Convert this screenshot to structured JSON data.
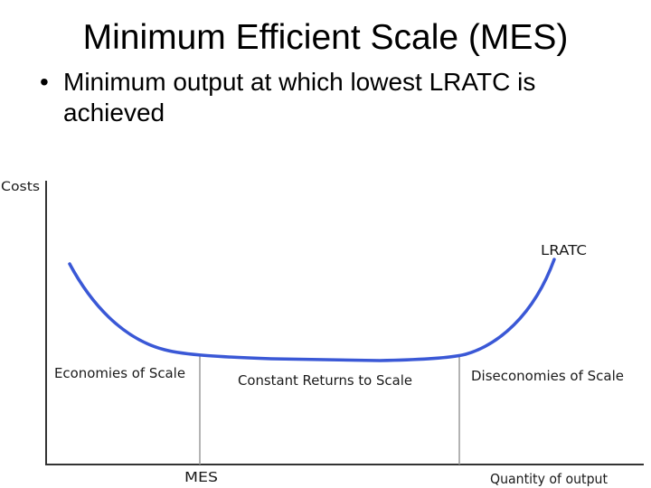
{
  "title": "Minimum Efficient Scale (MES)",
  "bullet": "Minimum output at which lowest LRATC is achieved",
  "bullet_marker": "•",
  "diagram": {
    "y_axis_label": "Costs",
    "x_axis_label": "Quantity of output",
    "curve_label": "LRATC",
    "regions": {
      "left": "Economies of Scale",
      "middle": "Constant Returns to Scale",
      "right": "Diseconomies of Scale"
    },
    "mes_label": "MES",
    "curve_color": "#3a58d6",
    "axis_color": "#333333"
  }
}
